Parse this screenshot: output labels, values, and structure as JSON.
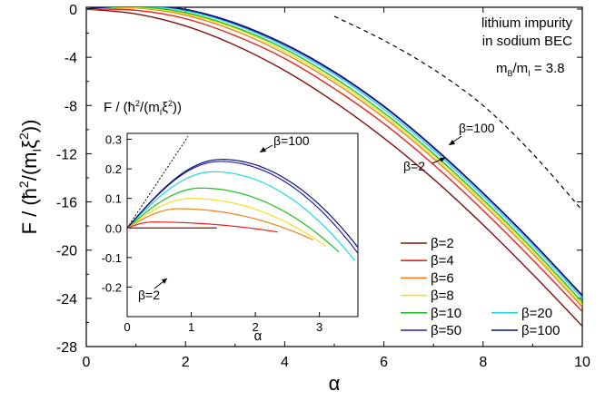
{
  "chart_data": [
    {
      "type": "line",
      "xlabel": "α",
      "ylabel": "F  /  (ħ²/(m_I ξ²))",
      "ylabel_parts": {
        "prefix": "F  /  (",
        "hbar": "ħ",
        "sup2": "2",
        "mid": "/(m",
        "sub_i": "I",
        "xi": "ξ",
        "sup2b": "2",
        "suffix": "))"
      },
      "xlim": [
        0,
        10
      ],
      "ylim": [
        -28,
        0.6
      ],
      "xticks": [
        0,
        2,
        4,
        6,
        8,
        10
      ],
      "yticks": [
        0,
        -4,
        -8,
        -12,
        -16,
        -20,
        -24,
        -28
      ],
      "series": [
        {
          "name": "β=2",
          "color": "#7f1010",
          "x": [
            0,
            1,
            2,
            3,
            4,
            5,
            6,
            7,
            8,
            9,
            10
          ],
          "y": [
            0,
            -0.4,
            -1.4,
            -3.0,
            -5.1,
            -7.7,
            -10.7,
            -14.1,
            -17.9,
            -22.0,
            -26.3
          ]
        },
        {
          "name": "β=4",
          "color": "#e8201a",
          "x": [
            0,
            1,
            2,
            3,
            4,
            5,
            6,
            7,
            8,
            9,
            10
          ],
          "y": [
            0,
            -0.1,
            -0.8,
            -2.2,
            -4.1,
            -6.6,
            -9.5,
            -12.9,
            -16.7,
            -20.8,
            -25.1
          ]
        },
        {
          "name": "β=6",
          "color": "#f07f1a",
          "x": [
            0,
            1,
            2,
            3,
            4,
            5,
            6,
            7,
            8,
            9,
            10
          ],
          "y": [
            0,
            0.1,
            -0.5,
            -1.8,
            -3.7,
            -6.1,
            -9.0,
            -12.4,
            -16.2,
            -20.3,
            -24.7
          ]
        },
        {
          "name": "β=8",
          "color": "#f0e020",
          "x": [
            0,
            1,
            2,
            3,
            4,
            5,
            6,
            7,
            8,
            9,
            10
          ],
          "y": [
            0,
            0.15,
            -0.4,
            -1.6,
            -3.5,
            -5.9,
            -8.8,
            -12.2,
            -16.0,
            -20.1,
            -24.5
          ]
        },
        {
          "name": "β=10",
          "color": "#20c020",
          "x": [
            0,
            1,
            2,
            3,
            4,
            5,
            6,
            7,
            8,
            9,
            10
          ],
          "y": [
            0,
            0.2,
            -0.3,
            -1.5,
            -3.3,
            -5.7,
            -8.6,
            -12.0,
            -15.8,
            -19.9,
            -24.3
          ]
        },
        {
          "name": "β=20",
          "color": "#20d8e0",
          "x": [
            0,
            1,
            2,
            3,
            4,
            5,
            6,
            7,
            8,
            9,
            10
          ],
          "y": [
            0,
            0.25,
            -0.15,
            -1.3,
            -3.1,
            -5.4,
            -8.3,
            -11.7,
            -15.5,
            -19.6,
            -24.0
          ]
        },
        {
          "name": "β=50",
          "color": "#2020c0",
          "x": [
            0,
            1,
            2,
            3,
            4,
            5,
            6,
            7,
            8,
            9,
            10
          ],
          "y": [
            0,
            0.3,
            -0.05,
            -1.2,
            -2.95,
            -5.25,
            -8.1,
            -11.5,
            -15.3,
            -19.4,
            -23.8
          ]
        },
        {
          "name": "β=100",
          "color": "#101070",
          "x": [
            0,
            1,
            2,
            3,
            4,
            5,
            6,
            7,
            8,
            9,
            10
          ],
          "y": [
            0,
            0.32,
            -0.02,
            -1.15,
            -2.9,
            -5.2,
            -8.05,
            -11.45,
            -15.25,
            -19.35,
            -23.75
          ]
        }
      ],
      "dashed_curve": {
        "x": [
          5,
          6,
          7,
          8,
          9,
          10
        ],
        "y": [
          -0.6,
          -2.6,
          -5.0,
          -8.0,
          -12.0,
          -16.7
        ],
        "color": "#000000"
      },
      "annotations": {
        "system_line1": "lithium impurity",
        "system_line2": "in sodium BEC",
        "mass_ratio": {
          "m": "m",
          "sub_b": "B",
          "slash": "/m",
          "sub_i": "I",
          "value": " = 3.8"
        },
        "beta_100_label": "β=100",
        "beta_2_label": "β=2"
      },
      "legend": {
        "placement": "bottom-right",
        "entries": [
          {
            "label": "β=2",
            "color": "#7f1010"
          },
          {
            "label": "β=4",
            "color": "#e8201a"
          },
          {
            "label": "β=6",
            "color": "#f07f1a"
          },
          {
            "label": "β=8",
            "color": "#f0e020"
          },
          {
            "label": "β=10",
            "color": "#20c020"
          },
          {
            "label": "β=20",
            "color": "#20d8e0"
          },
          {
            "label": "β=50",
            "color": "#2020c0"
          },
          {
            "label": "β=100",
            "color": "#101070"
          }
        ]
      }
    },
    {
      "type": "line",
      "xlabel": "α",
      "ylabel": "F / (ħ²/(m_I ξ²))",
      "ylabel_parts": {
        "prefix": "F / (",
        "hbar": "ħ",
        "sup2": "2",
        "mid": "/(m",
        "sub_i": "I",
        "xi": "ξ",
        "sup2b": "2",
        "suffix": "))"
      },
      "xlim": [
        0,
        3.6
      ],
      "ylim": [
        -0.3,
        0.32
      ],
      "xticks": [
        0,
        1,
        2,
        3
      ],
      "yticks": [
        0.3,
        0.2,
        0.1,
        0.0,
        -0.1,
        -0.2
      ],
      "ytick_labels": [
        "0.3",
        "0.2",
        "0.1",
        "0.0",
        "-0.1",
        "-0.2"
      ],
      "tangent_line": {
        "x": [
          0,
          0.95
        ],
        "y": [
          0,
          0.31
        ]
      },
      "series": [
        {
          "name": "β=2",
          "color": "#7f1010",
          "peak_x": 0.02,
          "peak_y": 0.0,
          "root_x": 0.95
        },
        {
          "name": "β=4",
          "color": "#e8201a",
          "peak_x": 0.4,
          "peak_y": 0.02,
          "root_x": 1.9
        },
        {
          "name": "β=6",
          "color": "#f07f1a",
          "peak_x": 0.8,
          "peak_y": 0.065,
          "root_x": 2.45
        },
        {
          "name": "β=8",
          "color": "#f0e020",
          "peak_x": 1.0,
          "peak_y": 0.1,
          "root_x": 2.65
        },
        {
          "name": "β=10",
          "color": "#20c020",
          "peak_x": 1.15,
          "peak_y": 0.135,
          "root_x": 2.85
        },
        {
          "name": "β=20",
          "color": "#20d8e0",
          "peak_x": 1.35,
          "peak_y": 0.19,
          "root_x": 3.1
        },
        {
          "name": "β=50",
          "color": "#2020c0",
          "peak_x": 1.45,
          "peak_y": 0.225,
          "root_x": 3.28
        },
        {
          "name": "β=100",
          "color": "#101070",
          "peak_x": 1.47,
          "peak_y": 0.232,
          "root_x": 3.35
        }
      ],
      "annotations": {
        "beta_100_label": "β=100",
        "beta_2_label": "β=2"
      }
    }
  ]
}
